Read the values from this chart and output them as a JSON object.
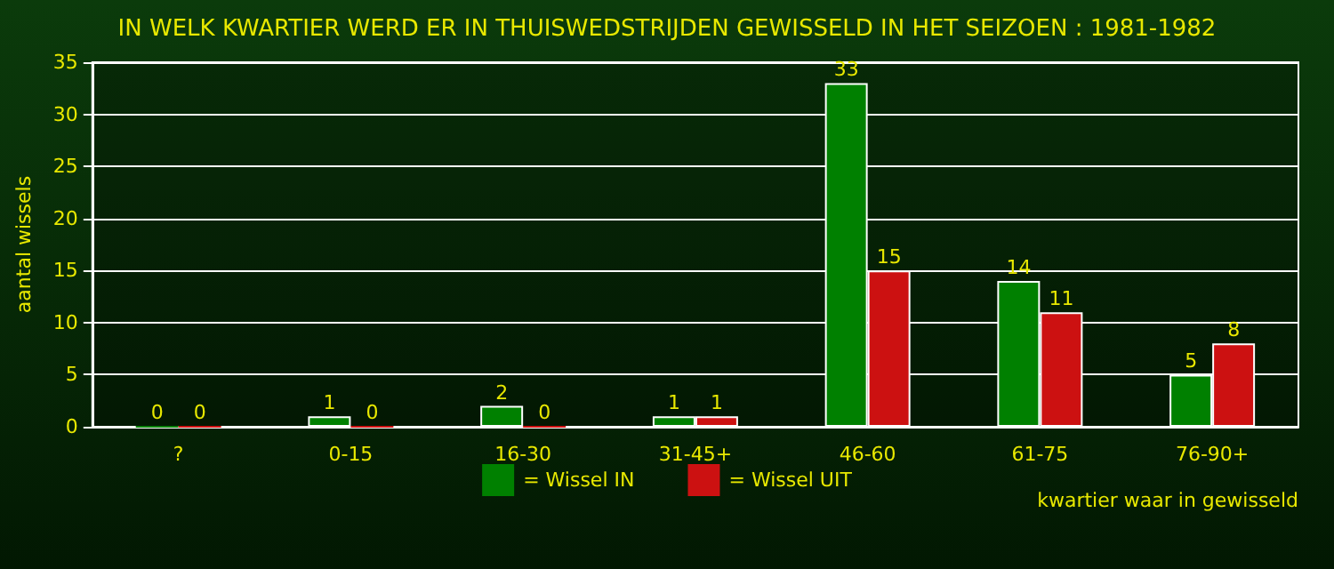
{
  "chart_data": {
    "type": "bar",
    "title": "IN WELK KWARTIER WERD ER IN THUISWEDSTRIJDEN GEWISSELD IN HET SEIZOEN : 1981-1982",
    "xlabel": "kwartier waar in gewisseld",
    "ylabel": "aantal wissels",
    "categories": [
      "?",
      "0-15",
      "16-30",
      "31-45+",
      "46-60",
      "61-75",
      "76-90+"
    ],
    "series": [
      {
        "name": "= Wissel IN",
        "color": "#008000",
        "values": [
          0,
          1,
          2,
          1,
          33,
          14,
          5
        ]
      },
      {
        "name": "= Wissel UIT",
        "color": "#cc1111",
        "values": [
          0,
          0,
          0,
          1,
          15,
          11,
          8
        ]
      }
    ],
    "ylim": [
      0,
      35
    ],
    "yticks": [
      0,
      5,
      10,
      15,
      20,
      25,
      30,
      35
    ],
    "grid": "y",
    "legend": "bottom",
    "data_labels": true
  }
}
